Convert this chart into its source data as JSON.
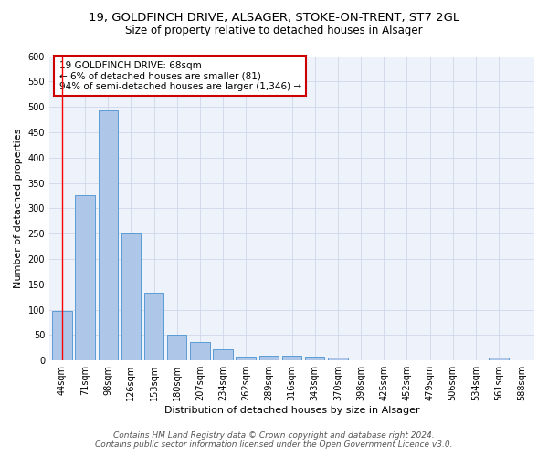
{
  "title_line1": "19, GOLDFINCH DRIVE, ALSAGER, STOKE-ON-TRENT, ST7 2GL",
  "title_line2": "Size of property relative to detached houses in Alsager",
  "xlabel": "Distribution of detached houses by size in Alsager",
  "ylabel": "Number of detached properties",
  "categories": [
    "44sqm",
    "71sqm",
    "98sqm",
    "126sqm",
    "153sqm",
    "180sqm",
    "207sqm",
    "234sqm",
    "262sqm",
    "289sqm",
    "316sqm",
    "343sqm",
    "370sqm",
    "398sqm",
    "425sqm",
    "452sqm",
    "479sqm",
    "506sqm",
    "534sqm",
    "561sqm",
    "588sqm"
  ],
  "values": [
    97,
    325,
    493,
    250,
    133,
    51,
    36,
    22,
    8,
    10,
    10,
    8,
    6,
    0,
    0,
    0,
    0,
    0,
    0,
    6,
    0
  ],
  "bar_color": "#aec6e8",
  "bar_edge_color": "#5b9bd5",
  "grid_color": "#d0d8e8",
  "bg_color": "#eef3fb",
  "annotation_text_line1": "19 GOLDFINCH DRIVE: 68sqm",
  "annotation_text_line2": "← 6% of detached houses are smaller (81)",
  "annotation_text_line3": "94% of semi-detached houses are larger (1,346) →",
  "ylim": [
    0,
    600
  ],
  "yticks": [
    0,
    50,
    100,
    150,
    200,
    250,
    300,
    350,
    400,
    450,
    500,
    550,
    600
  ],
  "footer_line1": "Contains HM Land Registry data © Crown copyright and database right 2024.",
  "footer_line2": "Contains public sector information licensed under the Open Government Licence v3.0.",
  "title_fontsize": 9.5,
  "subtitle_fontsize": 8.5,
  "axis_label_fontsize": 8,
  "tick_fontsize": 7,
  "annotation_fontsize": 7.5,
  "footer_fontsize": 6.5
}
